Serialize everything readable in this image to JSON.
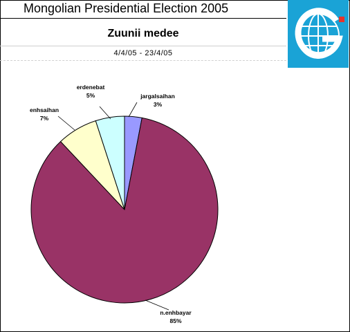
{
  "header": {
    "title": "Mongolian Presidential Election 2005",
    "subtitle": "Zuunii medee",
    "date_range": "4/4/05 - 23/4/05"
  },
  "logo": {
    "icon": "globe-g-icon",
    "background": "#1aa3d6",
    "accent": "#e8332a"
  },
  "chart_data": {
    "type": "pie",
    "title": "Zuunii medee",
    "slices": [
      {
        "label": "jargalsaihan",
        "value": 3,
        "display": "3%",
        "color": "#9999ff"
      },
      {
        "label": "n.enhbayar",
        "value": 85,
        "display": "85%",
        "color": "#993366"
      },
      {
        "label": "enhsaihan",
        "value": 7,
        "display": "7%",
        "color": "#ffffcc"
      },
      {
        "label": "erdenebat",
        "value": 5,
        "display": "5%",
        "color": "#ccffff"
      }
    ]
  }
}
